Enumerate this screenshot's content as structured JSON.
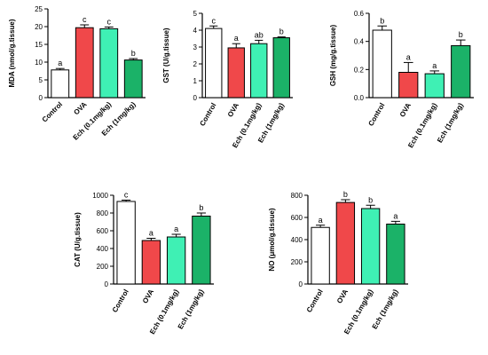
{
  "chart_data": [
    {
      "type": "bar",
      "ylabel": "MDA (nmol/g.tissue)",
      "ylim": [
        0,
        25
      ],
      "yticks": [
        0,
        5,
        10,
        15,
        20,
        25
      ],
      "categories": [
        "Control",
        "OVA",
        "Ech (0.1mg/kg)",
        "Ech (1mg/kg)"
      ],
      "values": [
        7.8,
        19.7,
        19.4,
        10.6
      ],
      "errors": [
        0.4,
        0.8,
        0.5,
        0.4
      ],
      "sig_labels": [
        "a",
        "c",
        "c",
        "b"
      ],
      "colors": [
        "#ffffff",
        "#f0484a",
        "#3ff0b4",
        "#1bb268"
      ],
      "legend": "none",
      "grid": false
    },
    {
      "type": "bar",
      "ylabel": "GST (U/g.tissue)",
      "ylim": [
        0,
        5
      ],
      "yticks": [
        0,
        1,
        2,
        3,
        4,
        5
      ],
      "categories": [
        "Control",
        "OVA",
        "Ech (0.1mg/kg)",
        "Ech (1mg/kg)"
      ],
      "values": [
        4.1,
        2.95,
        3.2,
        3.55
      ],
      "errors": [
        0.15,
        0.25,
        0.2,
        0.05
      ],
      "sig_labels": [
        "c",
        "a",
        "ab",
        "b"
      ],
      "colors": [
        "#ffffff",
        "#f0484a",
        "#3ff0b4",
        "#1bb268"
      ],
      "legend": "none",
      "grid": false
    },
    {
      "type": "bar",
      "ylabel": "GSH (mg/g.tissue)",
      "ylim": [
        0,
        0.6
      ],
      "yticks": [
        0.0,
        0.2,
        0.4,
        0.6
      ],
      "ytick_labels": [
        "0.0",
        "0.2",
        "0.4",
        "0.6"
      ],
      "categories": [
        "Control",
        "OVA",
        "Ech (0.1mg/kg)",
        "Ech (1mg/kg)"
      ],
      "values": [
        0.48,
        0.18,
        0.17,
        0.37
      ],
      "errors": [
        0.03,
        0.07,
        0.02,
        0.04
      ],
      "sig_labels": [
        "b",
        "a",
        "a",
        "b"
      ],
      "colors": [
        "#ffffff",
        "#f0484a",
        "#3ff0b4",
        "#1bb268"
      ],
      "legend": "none",
      "grid": false
    },
    {
      "type": "bar",
      "ylabel": "CAT (U/g.tissue)",
      "ylim": [
        0,
        1000
      ],
      "yticks": [
        0,
        200,
        400,
        600,
        800,
        1000
      ],
      "categories": [
        "Control",
        "OVA",
        "Ech (0.1mg/kg)",
        "Ech (1mg/kg)"
      ],
      "values": [
        930,
        490,
        530,
        765
      ],
      "errors": [
        15,
        25,
        30,
        35
      ],
      "sig_labels": [
        "c",
        "a",
        "a",
        "b"
      ],
      "colors": [
        "#ffffff",
        "#f0484a",
        "#3ff0b4",
        "#1bb268"
      ],
      "legend": "none",
      "grid": false
    },
    {
      "type": "bar",
      "ylabel": "NO (μmol/g.tissue)",
      "ylim": [
        0,
        800
      ],
      "yticks": [
        0,
        200,
        400,
        600,
        800
      ],
      "categories": [
        "Control",
        "OVA",
        "Ech (0.1mg/kg)",
        "Ech (1mg/kg)"
      ],
      "values": [
        510,
        735,
        680,
        540
      ],
      "errors": [
        20,
        25,
        30,
        25
      ],
      "sig_labels": [
        "a",
        "b",
        "b",
        "a"
      ],
      "colors": [
        "#ffffff",
        "#f0484a",
        "#3ff0b4",
        "#1bb268"
      ],
      "legend": "none",
      "grid": false
    }
  ]
}
